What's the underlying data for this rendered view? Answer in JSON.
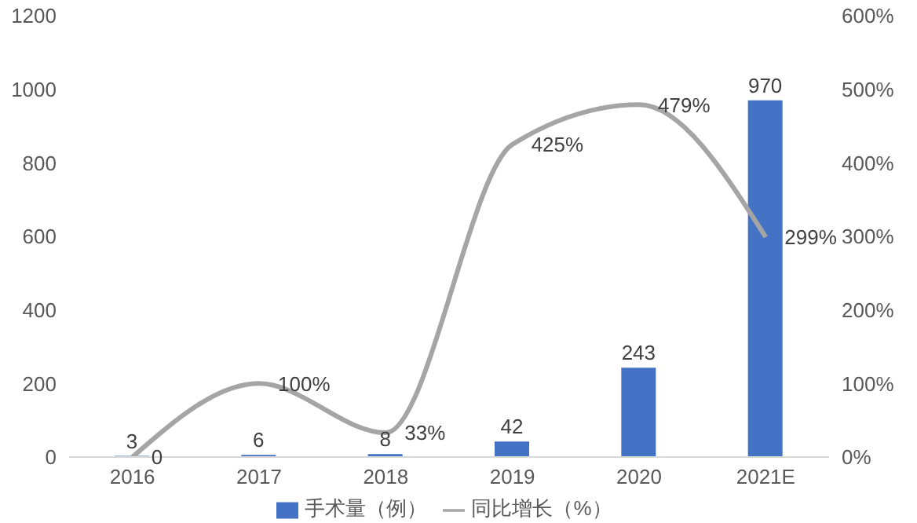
{
  "chart_data": {
    "type": "bar",
    "categories": [
      "2016",
      "2017",
      "2018",
      "2019",
      "2020",
      "2021E"
    ],
    "series": [
      {
        "name": "手术量（例）",
        "color": "#4472c4",
        "values": [
          3,
          6,
          8,
          42,
          243,
          970
        ]
      },
      {
        "name": "同比增长（%）",
        "type": "line",
        "axis": "y2",
        "color": "#a5a5a5",
        "values": [
          0,
          100,
          33,
          425,
          479,
          299
        ],
        "value_labels": [
          "0",
          "100%",
          "33%",
          "425%",
          "479%",
          "299%"
        ]
      }
    ],
    "data_labels": true,
    "ylim": [
      0,
      1200
    ],
    "yticks": [
      0,
      200,
      400,
      600,
      800,
      1000,
      1200
    ],
    "y2lim": [
      0,
      600
    ],
    "y2ticks": [
      {
        "value": 0,
        "label": "0%"
      },
      {
        "value": 100,
        "label": "100%"
      },
      {
        "value": 200,
        "label": "200%"
      },
      {
        "value": 300,
        "label": "300%"
      },
      {
        "value": 400,
        "label": "400%"
      },
      {
        "value": 500,
        "label": "500%"
      },
      {
        "value": 600,
        "label": "600%"
      }
    ],
    "grid": false,
    "legend": "bottom",
    "marker": "none",
    "line_style": "solid"
  }
}
